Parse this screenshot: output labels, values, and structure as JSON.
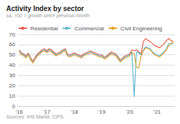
{
  "chart_data": {
    "type": "line",
    "title": "Activity Index by sector",
    "subtitle": "sa, >50 = growth since previous month",
    "annotations": [
      "Sources: IHS Markit, CIPS."
    ],
    "categories": [
      "'16",
      null,
      null,
      null,
      null,
      null,
      null,
      null,
      null,
      null,
      null,
      null,
      "'17",
      null,
      null,
      null,
      null,
      null,
      null,
      null,
      null,
      null,
      null,
      null,
      "'18",
      null,
      null,
      null,
      null,
      null,
      null,
      null,
      null,
      null,
      null,
      null,
      "'19",
      null,
      null,
      null,
      null,
      null,
      null,
      null,
      null,
      null,
      null,
      null,
      "'20",
      null,
      null,
      null,
      null,
      null,
      null,
      null,
      null,
      null,
      null,
      null,
      "'21",
      null,
      null,
      null,
      null,
      null,
      null,
      null
    ],
    "series": [
      {
        "name": "Residential",
        "color": "#e8604c",
        "values": [
          55,
          52,
          51,
          49,
          52,
          47,
          44,
          48,
          51,
          53,
          55,
          56,
          54,
          56,
          55,
          53,
          51,
          52,
          53,
          55,
          56,
          51,
          50,
          51,
          52,
          51,
          50,
          49,
          51,
          52,
          53,
          54,
          53,
          52,
          51,
          50,
          50,
          48,
          49,
          51,
          53,
          52,
          51,
          48,
          45,
          47,
          49,
          50,
          51,
          55,
          54,
          55,
          53,
          51,
          63,
          66,
          64,
          63,
          61,
          59,
          58,
          57,
          59,
          61,
          64,
          66,
          64,
          63
        ]
      },
      {
        "name": "Commercial",
        "color": "#62b8d0",
        "values": [
          54,
          51,
          50,
          48,
          51,
          46,
          43,
          47,
          50,
          52,
          54,
          55,
          53,
          55,
          54,
          52,
          50,
          51,
          52,
          54,
          55,
          50,
          49,
          50,
          51,
          50,
          49,
          48,
          50,
          51,
          52,
          53,
          52,
          51,
          50,
          49,
          49,
          47,
          48,
          50,
          52,
          51,
          50,
          47,
          44,
          46,
          48,
          49,
          50,
          53,
          9,
          53,
          52,
          50,
          55,
          58,
          57,
          56,
          53,
          51,
          50,
          49,
          51,
          53,
          56,
          61,
          61,
          61
        ]
      },
      {
        "name": "Civil Engineering",
        "color": "#e8a030",
        "values": [
          53,
          50,
          49,
          47,
          50,
          45,
          42,
          46,
          49,
          51,
          53,
          54,
          52,
          54,
          53,
          51,
          49,
          50,
          51,
          53,
          54,
          49,
          48,
          49,
          50,
          49,
          48,
          47,
          49,
          50,
          51,
          52,
          51,
          50,
          49,
          48,
          48,
          46,
          47,
          49,
          51,
          50,
          49,
          46,
          43,
          45,
          47,
          48,
          49,
          52,
          51,
          38,
          37,
          49,
          54,
          57,
          56,
          55,
          52,
          50,
          49,
          48,
          50,
          52,
          55,
          59,
          61,
          63
        ]
      }
    ],
    "ylim": [
      0,
      70
    ],
    "yticks": [
      0,
      10,
      20,
      30,
      40,
      50,
      60,
      70
    ],
    "grid": true,
    "legend": "top"
  }
}
